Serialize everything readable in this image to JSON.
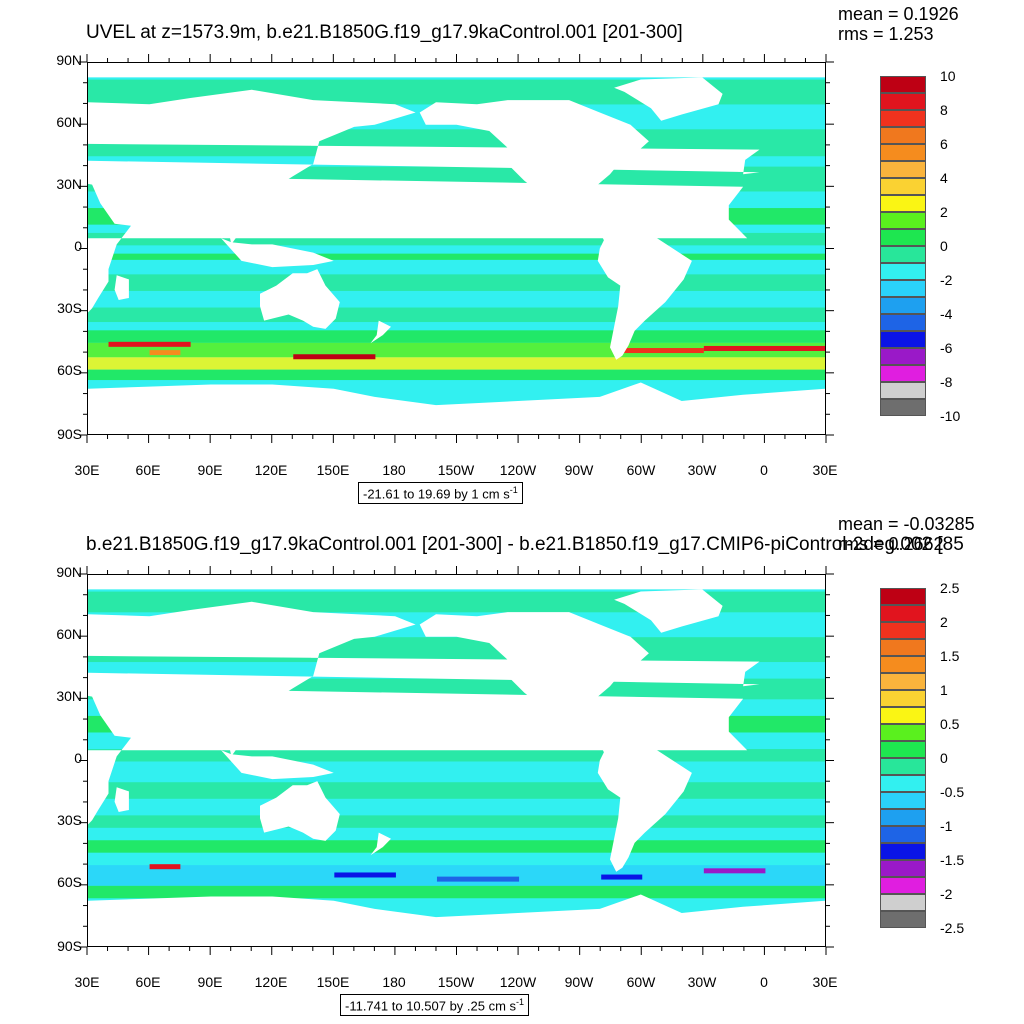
{
  "panels": [
    {
      "title": "UVEL at z=1573.9m, b.e21.B1850G.f19_g17.9kaControl.001 [201-300]",
      "mean": "mean = 0.1926",
      "rms": "rms = 1.253",
      "range_text": "-21.61 to 19.69 by 1 cm s",
      "range_exp": "-1",
      "colorbar_labels": [
        "10",
        "8",
        "6",
        "4",
        "2",
        "0",
        "-2",
        "-4",
        "-6",
        "-8",
        "-10"
      ]
    },
    {
      "title": "b.e21.B1850G.f19_g17.9kaControl.001 [201-300] - b.e21.B1850.f19_g17.CMIP6-piControl-2deg.002 [85",
      "mean": "mean = -0.03285",
      "rms": "rms = 0.2662",
      "range_text": "-11.741 to 10.507 by .25 cm s",
      "range_exp": "-1",
      "colorbar_labels": [
        "2.5",
        "2",
        "1.5",
        "1",
        "0.5",
        "0",
        "-0.5",
        "-1",
        "-1.5",
        "-2",
        "-2.5"
      ]
    }
  ],
  "lat_labels": [
    "90N",
    "60N",
    "30N",
    "0",
    "30S",
    "60S",
    "90S"
  ],
  "lon_labels": [
    "30E",
    "60E",
    "90E",
    "120E",
    "150E",
    "180",
    "150W",
    "120W",
    "90W",
    "60W",
    "30W",
    "0",
    "30E"
  ],
  "colors": {
    "palette": [
      "#6e6e6e",
      "#cfcfcf",
      "#e01ee0",
      "#9a19c8",
      "#0a14e6",
      "#1e64e6",
      "#1ea0f0",
      "#2ad2fa",
      "#32f0f0",
      "#28e69a",
      "#1ee650",
      "#5af01e",
      "#faf514",
      "#fad232",
      "#fab43c",
      "#f58c1e",
      "#f0781e",
      "#f0321e",
      "#e1141e",
      "#be0014"
    ],
    "ocean_base": "#32f0f0",
    "land": "#ffffff"
  }
}
